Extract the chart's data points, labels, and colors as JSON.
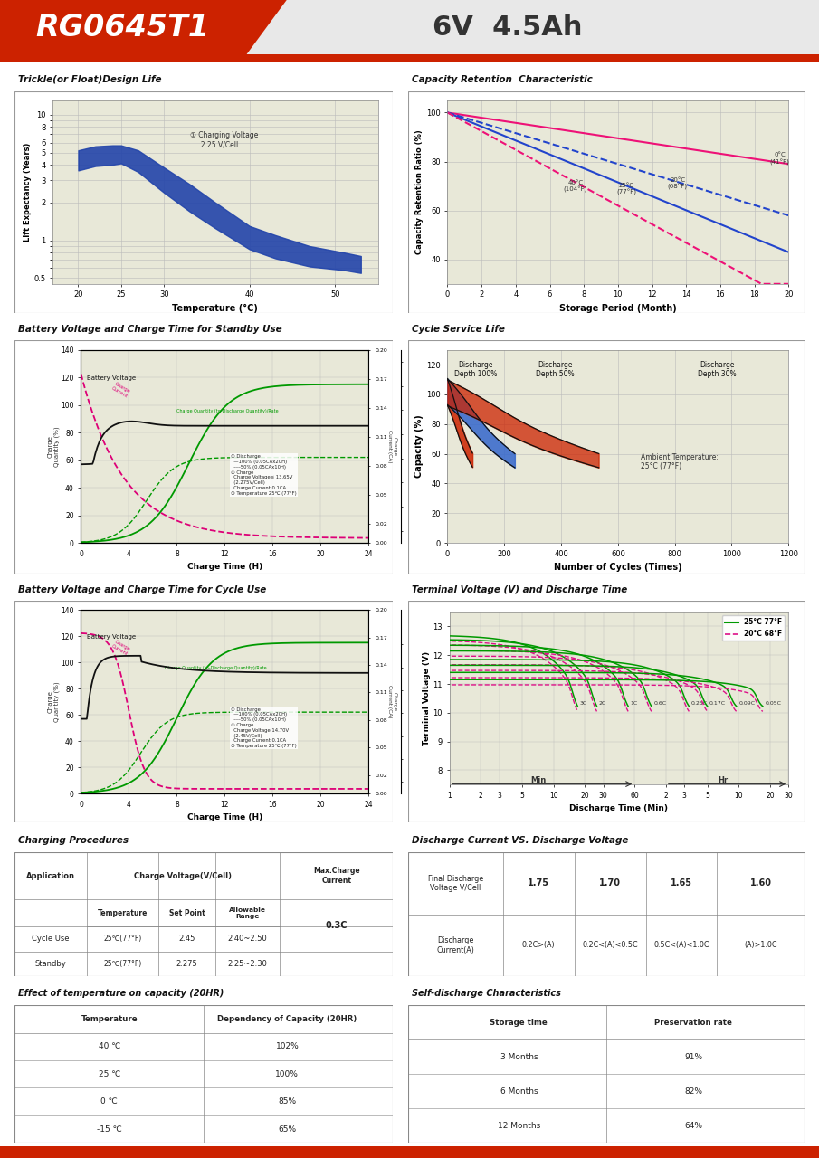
{
  "title_model": "RG0645T1",
  "title_spec": "6V  4.5Ah",
  "section1_title": "Trickle(or Float)Design Life",
  "section2_title": "Capacity Retention  Characteristic",
  "section3_title": "Battery Voltage and Charge Time for Standby Use",
  "section4_title": "Cycle Service Life",
  "section5_title": "Battery Voltage and Charge Time for Cycle Use",
  "section6_title": "Terminal Voltage (V) and Discharge Time",
  "section7_title": "Charging Procedures",
  "section8_title": "Discharge Current VS. Discharge Voltage",
  "section9_title": "Effect of temperature on capacity (20HR)",
  "section10_title": "Self-discharge Characteristics",
  "temp_table": {
    "headers": [
      "Temperature",
      "Dependency of Capacity (20HR)"
    ],
    "rows": [
      [
        "40 ℃",
        "102%"
      ],
      [
        "25 ℃",
        "100%"
      ],
      [
        "0 ℃",
        "85%"
      ],
      [
        "-15 ℃",
        "65%"
      ]
    ]
  },
  "self_discharge_table": {
    "headers": [
      "Storage time",
      "Preservation rate"
    ],
    "rows": [
      [
        "3 Months",
        "91%"
      ],
      [
        "6 Months",
        "82%"
      ],
      [
        "12 Months",
        "64%"
      ]
    ]
  },
  "charging_table": {
    "rows": [
      [
        "Cycle Use",
        "25℃(77°F)",
        "2.45",
        "2.40~2.50",
        "0.3C"
      ],
      [
        "Standby",
        "25℃(77°F)",
        "2.275",
        "2.25~2.30",
        ""
      ]
    ]
  },
  "discharge_voltage_table": {
    "row1_header": "Final Discharge\nVoltage V/Cell",
    "row1_vals": [
      "1.75",
      "1.70",
      "1.65",
      "1.60"
    ],
    "row2_header": "Discharge\nCurrent(A)",
    "row2_vals": [
      "0.2C>(A)",
      "0.2C<(A)<0.5C",
      "0.5C<(A)<1.0C",
      "(A)>1.0C"
    ]
  }
}
